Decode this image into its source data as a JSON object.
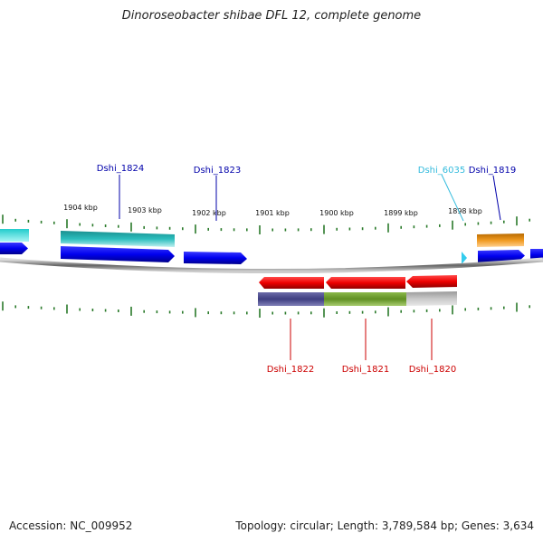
{
  "title": "Dinoroseobacter shibae DFL 12, complete genome",
  "footer": {
    "accession": "Accession: NC_009952",
    "topology": "Topology: circular; Length: 3,789,584 bp; Genes: 3,634"
  },
  "scale_labels": [
    "1904 kbp",
    "1903 kbp",
    "1902 kbp",
    "1901 kbp",
    "1900 kbp",
    "1899 kbp",
    "1898 kbp"
  ],
  "gene_labels_top": [
    {
      "name": "Dshi_1824",
      "color": "#0000aa"
    },
    {
      "name": "Dshi_1823",
      "color": "#0000aa"
    },
    {
      "name": "Dshi_6035",
      "color": "#33bbdd"
    },
    {
      "name": "Dshi_1819",
      "color": "#0000aa"
    }
  ],
  "gene_labels_bottom": [
    {
      "name": "Dshi_1822",
      "color": "#cc0000"
    },
    {
      "name": "Dshi_1821",
      "color": "#cc0000"
    },
    {
      "name": "Dshi_1820",
      "color": "#cc0000"
    }
  ],
  "colors": {
    "forward_gene": "#0000ee",
    "reverse_gene": "#ee0000",
    "tick": "#2a7a2a",
    "backbone": "#888888",
    "cog_teal": "#2bb5b5",
    "cog_orange": "#e08a10",
    "cog_navy": "#4a4a8a",
    "cog_olive": "#6a9a2a",
    "cog_grey": "#bbbbbb",
    "trna": "#33ccee"
  }
}
